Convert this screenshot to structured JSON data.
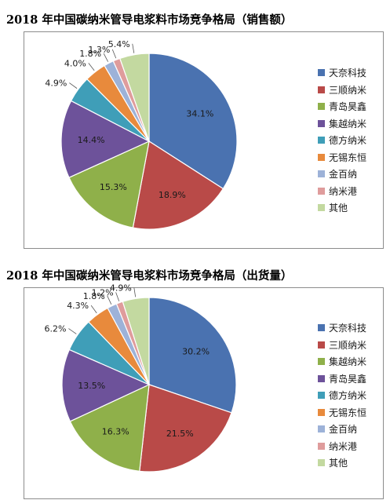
{
  "chart_data": [
    {
      "type": "pie",
      "title": "2018 年中国碳纳米管导电浆料市场竞争格局（销售额）",
      "labels": [
        "天奈科技",
        "三顺纳米",
        "青岛昊鑫",
        "集越纳米",
        "德方纳米",
        "无锡东恒",
        "金百纳",
        "纳米港",
        "其他"
      ],
      "values": [
        34.1,
        18.9,
        15.3,
        14.4,
        4.9,
        4.0,
        1.8,
        1.3,
        5.4
      ],
      "value_labels": [
        "34.1%",
        "18.9%",
        "15.3%",
        "14.4%",
        "4.9%",
        "4.0%",
        "1.8%",
        "1.3%",
        "5.4%"
      ],
      "colors": [
        "#4a72b0",
        "#b94a48",
        "#8fb04a",
        "#6d529a",
        "#3f9eb8",
        "#e88a3c",
        "#9db2d8",
        "#df9c9c",
        "#c3d9a0"
      ],
      "legend_position": "right"
    },
    {
      "type": "pie",
      "title": "2018 年中国碳纳米管导电浆料市场竞争格局（出货量）",
      "labels": [
        "天奈科技",
        "三顺纳米",
        "集越纳米",
        "青岛昊鑫",
        "德方纳米",
        "无锡东恒",
        "金百纳",
        "纳米港",
        "其他"
      ],
      "values": [
        30.2,
        21.5,
        16.3,
        13.5,
        6.2,
        4.3,
        1.8,
        1.2,
        4.9
      ],
      "value_labels": [
        "30.2%",
        "21.5%",
        "16.3%",
        "13.5%",
        "6.2%",
        "4.3%",
        "1.8%",
        "1.2%",
        "4.9%"
      ],
      "colors": [
        "#4a72b0",
        "#b94a48",
        "#8fb04a",
        "#6d529a",
        "#3f9eb8",
        "#e88a3c",
        "#9db2d8",
        "#df9c9c",
        "#c3d9a0"
      ],
      "legend_position": "right"
    }
  ]
}
